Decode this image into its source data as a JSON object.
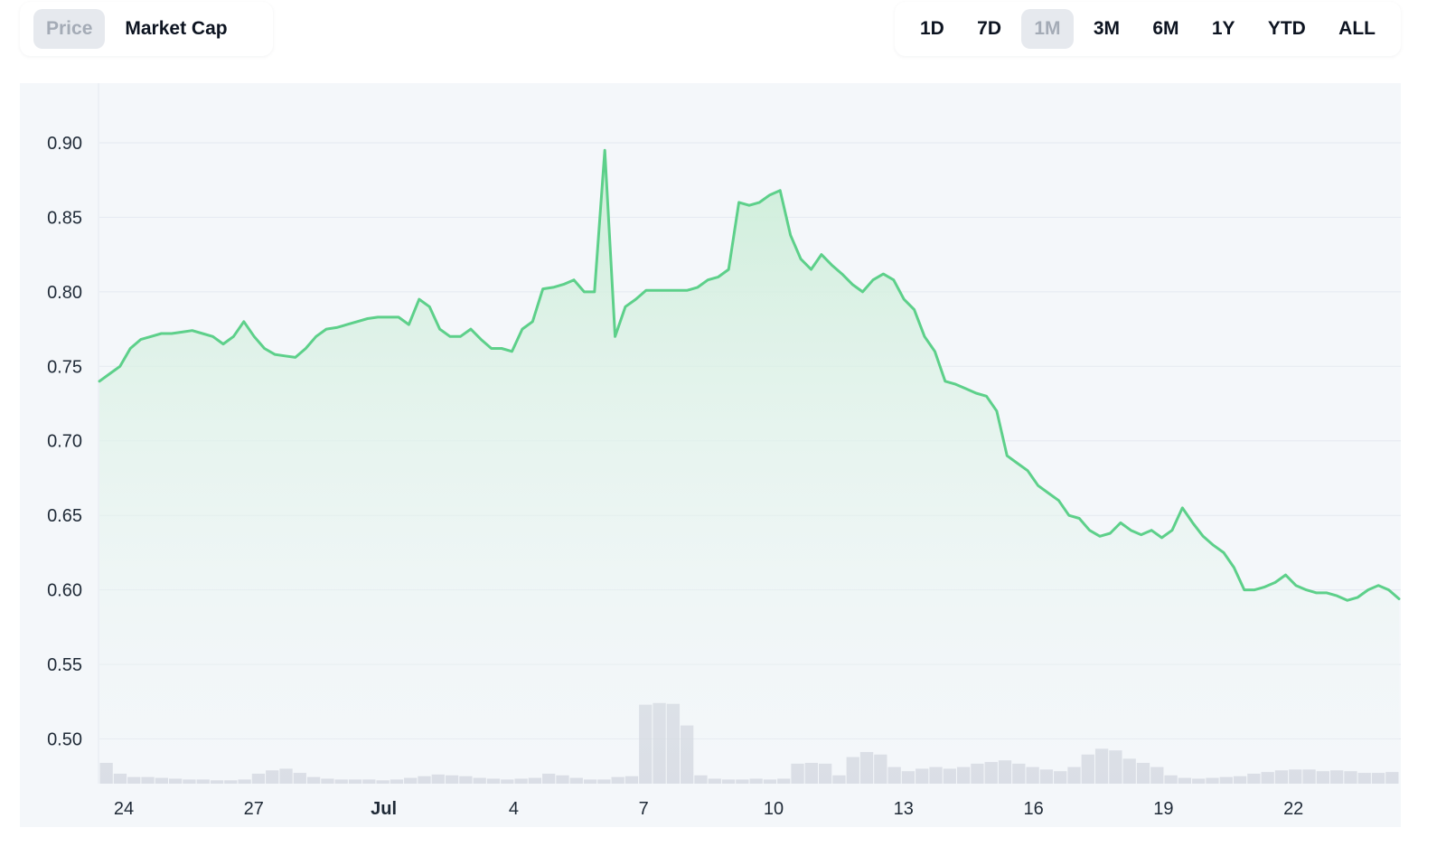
{
  "toggle": {
    "price_label": "Price",
    "market_cap_label": "Market Cap"
  },
  "ranges": [
    "1D",
    "7D",
    "1M",
    "3M",
    "6M",
    "1Y",
    "YTD",
    "ALL"
  ],
  "active_range": "1M",
  "colors": {
    "line": "#5dd08a",
    "fill_top": "#cdeed9",
    "grid": "#e4e9f0",
    "plot_bg": "#f4f7fa",
    "volume": "#c9ced8",
    "active_btn_bg": "#e6e9ee"
  },
  "chart_data": {
    "type": "area",
    "title": "",
    "xlabel": "",
    "ylabel": "",
    "ylim": [
      0.47,
      0.94
    ],
    "yticks": [
      "0.90",
      "0.85",
      "0.80",
      "0.75",
      "0.70",
      "0.65",
      "0.60",
      "0.55",
      "0.50"
    ],
    "xticks": [
      {
        "label": "24",
        "bold": false
      },
      {
        "label": "27",
        "bold": false
      },
      {
        "label": "Jul",
        "bold": true
      },
      {
        "label": "4",
        "bold": false
      },
      {
        "label": "7",
        "bold": false
      },
      {
        "label": "10",
        "bold": false
      },
      {
        "label": "13",
        "bold": false
      },
      {
        "label": "16",
        "bold": false
      },
      {
        "label": "19",
        "bold": false
      },
      {
        "label": "22",
        "bold": false
      }
    ],
    "series": [
      {
        "values": [
          0.74,
          0.745,
          0.75,
          0.762,
          0.768,
          0.77,
          0.772,
          0.772,
          0.773,
          0.774,
          0.772,
          0.77,
          0.765,
          0.77,
          0.78,
          0.77,
          0.762,
          0.758,
          0.757,
          0.756,
          0.762,
          0.77,
          0.775,
          0.776,
          0.778,
          0.78,
          0.782,
          0.783,
          0.783,
          0.783,
          0.778,
          0.795,
          0.79,
          0.775,
          0.77,
          0.77,
          0.775,
          0.768,
          0.762,
          0.762,
          0.76,
          0.775,
          0.78,
          0.802,
          0.803,
          0.805,
          0.808,
          0.8,
          0.8,
          0.895,
          0.77,
          0.79,
          0.795,
          0.801,
          0.801,
          0.801,
          0.801,
          0.801,
          0.803,
          0.808,
          0.81,
          0.815,
          0.86,
          0.858,
          0.86,
          0.865,
          0.868,
          0.838,
          0.822,
          0.815,
          0.825,
          0.818,
          0.812,
          0.805,
          0.8,
          0.808,
          0.812,
          0.808,
          0.795,
          0.788,
          0.77,
          0.76,
          0.74,
          0.738,
          0.735,
          0.732,
          0.73,
          0.72,
          0.69,
          0.685,
          0.68,
          0.67,
          0.665,
          0.66,
          0.65,
          0.648,
          0.64,
          0.636,
          0.638,
          0.645,
          0.64,
          0.637,
          0.64,
          0.635,
          0.64,
          0.655,
          0.645,
          0.636,
          0.63,
          0.625,
          0.615,
          0.6,
          0.6,
          0.602,
          0.605,
          0.61,
          0.603,
          0.6,
          0.598,
          0.598,
          0.596,
          0.593,
          0.595,
          0.6,
          0.603,
          0.6,
          0.594
        ]
      }
    ],
    "volume": [
      0.25,
      0.12,
      0.08,
      0.08,
      0.07,
      0.06,
      0.05,
      0.05,
      0.04,
      0.04,
      0.05,
      0.12,
      0.16,
      0.18,
      0.13,
      0.08,
      0.06,
      0.05,
      0.05,
      0.05,
      0.04,
      0.05,
      0.07,
      0.09,
      0.11,
      0.1,
      0.09,
      0.07,
      0.06,
      0.05,
      0.06,
      0.07,
      0.12,
      0.1,
      0.07,
      0.05,
      0.05,
      0.08,
      0.09,
      0.95,
      0.97,
      0.96,
      0.7,
      0.1,
      0.06,
      0.05,
      0.05,
      0.06,
      0.05,
      0.06,
      0.24,
      0.25,
      0.24,
      0.1,
      0.32,
      0.38,
      0.35,
      0.2,
      0.15,
      0.18,
      0.2,
      0.18,
      0.2,
      0.24,
      0.26,
      0.28,
      0.24,
      0.2,
      0.17,
      0.15,
      0.2,
      0.35,
      0.42,
      0.4,
      0.3,
      0.25,
      0.2,
      0.1,
      0.07,
      0.06,
      0.07,
      0.08,
      0.09,
      0.12,
      0.14,
      0.16,
      0.17,
      0.17,
      0.15,
      0.16,
      0.15,
      0.13,
      0.13,
      0.14
    ]
  }
}
